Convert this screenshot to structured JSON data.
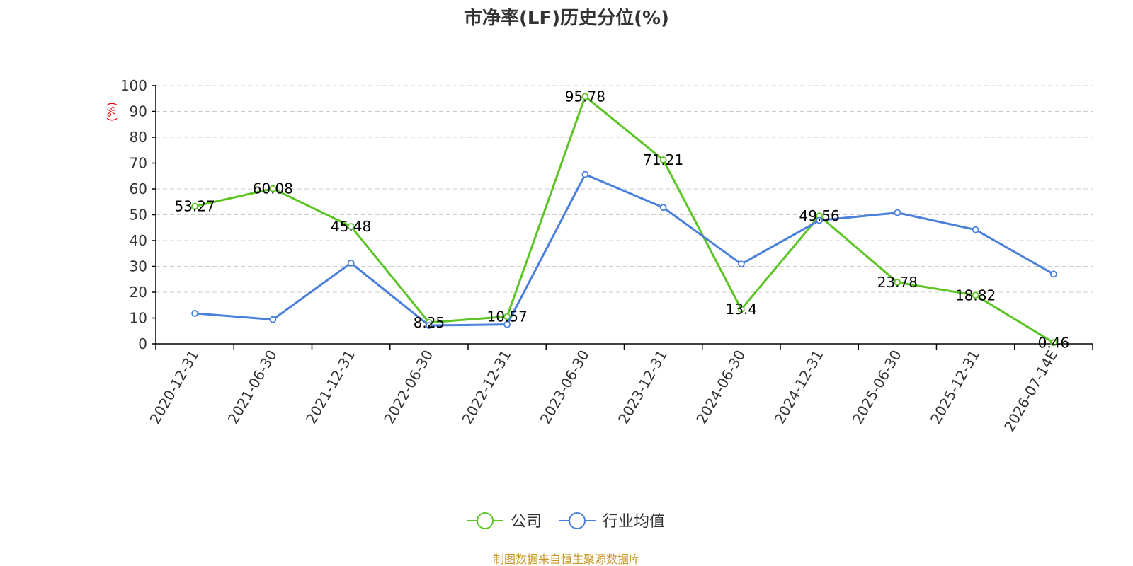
{
  "chart_data": {
    "type": "line",
    "title": "市净率(LF)历史分位(%)",
    "ylabel": "(%)",
    "xlabel": "",
    "ylim": [
      0,
      100
    ],
    "yticks": [
      0,
      10,
      20,
      30,
      40,
      50,
      60,
      70,
      80,
      90,
      100
    ],
    "grid": true,
    "legend_position": "bottom",
    "categories": [
      "2020-12-31",
      "2021-06-30",
      "2021-12-31",
      "2022-06-30",
      "2022-12-31",
      "2023-06-30",
      "2023-12-31",
      "2024-06-30",
      "2024-12-31",
      "2025-06-30",
      "2025-12-31",
      "2026-07-14E"
    ],
    "series": [
      {
        "name": "公司",
        "color": "#5cc424",
        "values": [
          53.27,
          60.08,
          45.48,
          8.25,
          10.57,
          95.78,
          71.21,
          13.4,
          49.56,
          23.78,
          18.82,
          0.46
        ],
        "labels": [
          "53.27",
          "60.08",
          "45.48",
          "8.25",
          "10.57",
          "95.78",
          "71.21",
          "13.4",
          "49.56",
          "23.78",
          "18.82",
          "0.46"
        ]
      },
      {
        "name": "行业均值",
        "color": "#4a7fdb",
        "values": [
          11.8,
          9.4,
          31.3,
          7.1,
          7.5,
          65.6,
          52.8,
          30.9,
          47.8,
          50.8,
          44.2,
          27.0
        ]
      }
    ]
  },
  "source": "制图数据来自恒生聚源数据库"
}
